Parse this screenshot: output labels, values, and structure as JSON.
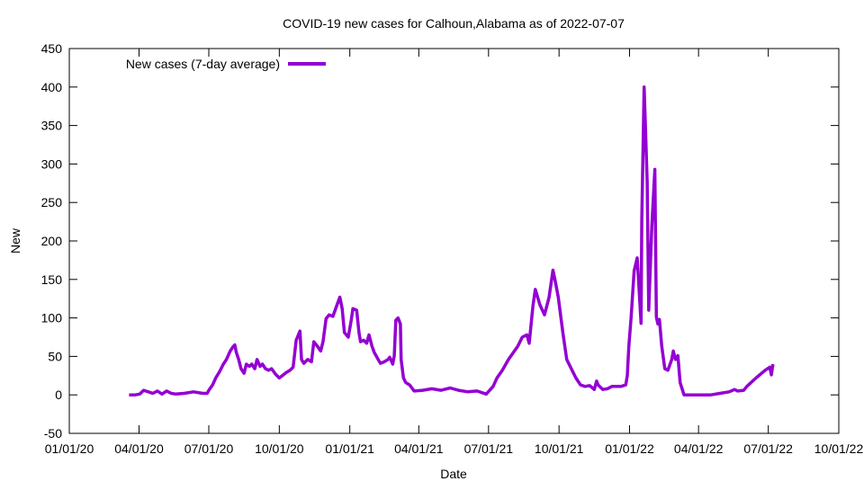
{
  "chart_data": {
    "type": "line",
    "title": "COVID-19 new cases for Calhoun,Alabama as of 2022-07-07",
    "xlabel": "Date",
    "ylabel": "New",
    "x_units": "days since 2020-01-01",
    "xlim": [
      0,
      1004
    ],
    "ylim": [
      -50,
      450
    ],
    "yticks": [
      -50,
      0,
      50,
      100,
      150,
      200,
      250,
      300,
      350,
      400,
      450
    ],
    "xticks": [
      {
        "day": 0,
        "label": "01/01/20"
      },
      {
        "day": 91,
        "label": "04/01/20"
      },
      {
        "day": 182,
        "label": "07/01/20"
      },
      {
        "day": 274,
        "label": "10/01/20"
      },
      {
        "day": 366,
        "label": "01/01/21"
      },
      {
        "day": 456,
        "label": "04/01/21"
      },
      {
        "day": 547,
        "label": "07/01/21"
      },
      {
        "day": 639,
        "label": "10/01/21"
      },
      {
        "day": 731,
        "label": "01/01/22"
      },
      {
        "day": 821,
        "label": "04/01/22"
      },
      {
        "day": 912,
        "label": "07/01/22"
      },
      {
        "day": 1004,
        "label": "10/01/22"
      }
    ],
    "grid": false,
    "legend_position": "top-left",
    "series": [
      {
        "name": "New cases (7-day average)",
        "color": "#9400d3",
        "x": [
          78,
          86,
          92,
          97,
          103,
          109,
          115,
          121,
          127,
          133,
          139,
          150,
          162,
          174,
          180,
          182,
          187,
          191,
          196,
          201,
          205,
          210,
          214,
          216,
          218,
          221,
          224,
          228,
          231,
          235,
          238,
          242,
          245,
          249,
          252,
          256,
          260,
          264,
          269,
          274,
          278,
          283,
          288,
          292,
          296,
          301,
          303,
          306,
          311,
          316,
          319,
          323,
          328,
          331,
          335,
          339,
          344,
          349,
          353,
          356,
          359,
          364,
          368,
          370,
          375,
          378,
          380,
          384,
          388,
          391,
          395,
          398,
          403,
          406,
          411,
          416,
          418,
          422,
          424,
          426,
          429,
          432,
          433,
          436,
          439,
          444,
          450,
          461,
          473,
          485,
          497,
          508,
          520,
          532,
          544,
          553,
          558,
          565,
          573,
          585,
          591,
          597,
          600,
          605,
          608,
          614,
          620,
          626,
          631,
          634,
          638,
          644,
          649,
          655,
          661,
          667,
          673,
          679,
          685,
          688,
          690,
          696,
          702,
          708,
          720,
          726,
          728,
          730,
          733,
          737,
          741,
          743,
          746,
          747,
          750,
          754,
          756,
          760,
          764,
          766,
          768,
          770,
          773,
          777,
          781,
          786,
          788,
          791,
          794,
          797,
          802,
          814,
          837,
          849,
          861,
          868,
          872,
          880,
          884,
          896,
          908,
          914,
          916,
          918
        ],
        "values": [
          0,
          0,
          1,
          6,
          4,
          2,
          5,
          1,
          5,
          2,
          1,
          2,
          4,
          2,
          2,
          6,
          13,
          22,
          30,
          40,
          46,
          57,
          63,
          65,
          55,
          46,
          34,
          28,
          40,
          37,
          40,
          34,
          46,
          37,
          40,
          34,
          32,
          34,
          27,
          22,
          25,
          29,
          32,
          36,
          71,
          83,
          46,
          41,
          46,
          43,
          69,
          64,
          57,
          69,
          99,
          104,
          102,
          116,
          127,
          112,
          81,
          75,
          98,
          112,
          110,
          81,
          69,
          71,
          67,
          78,
          63,
          55,
          46,
          41,
          43,
          46,
          49,
          40,
          51,
          97,
          100,
          92,
          46,
          22,
          16,
          13,
          5,
          6,
          8,
          6,
          9,
          6,
          4,
          5,
          1,
          11,
          22,
          32,
          46,
          63,
          75,
          78,
          67,
          116,
          137,
          117,
          104,
          127,
          162,
          148,
          127,
          81,
          46,
          34,
          22,
          13,
          11,
          12,
          7,
          18,
          13,
          7,
          8,
          11,
          11,
          13,
          25,
          63,
          100,
          161,
          178,
          145,
          93,
          227,
          400,
          277,
          110,
          218,
          293,
          101,
          92,
          98,
          63,
          34,
          32,
          46,
          57,
          46,
          51,
          16,
          0,
          0,
          0,
          2,
          4,
          7,
          5,
          6,
          11,
          22,
          32,
          36,
          26,
          40
        ]
      }
    ]
  }
}
